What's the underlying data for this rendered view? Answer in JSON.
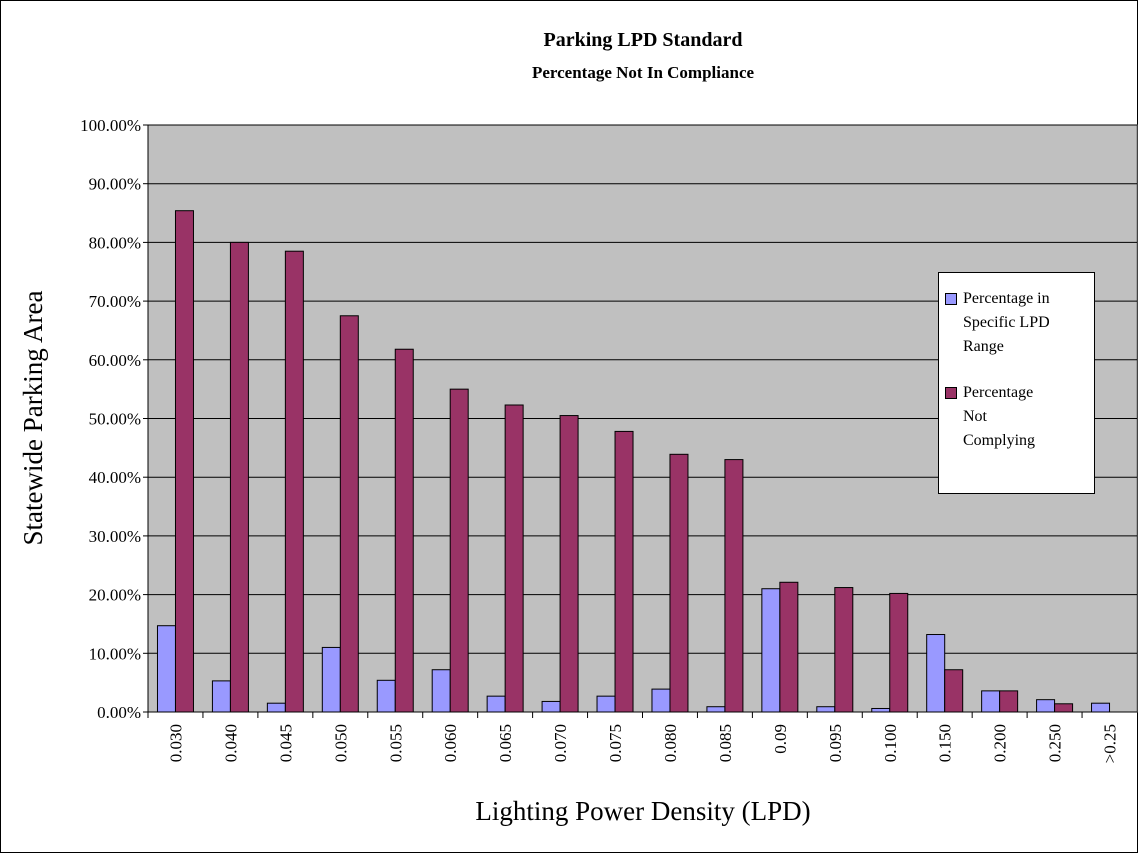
{
  "chart_data": {
    "type": "bar",
    "title": "Parking LPD Standard",
    "subtitle": "Percentage Not In Compliance",
    "x_label": "Lighting Power Density (LPD)",
    "y_label": "Statewide Parking Area",
    "categories": [
      "0.030",
      "0.040",
      "0.045",
      "0.050",
      "0.055",
      "0.060",
      "0.065",
      "0.070",
      "0.075",
      "0.080",
      "0.085",
      "0.09",
      "0.095",
      "0.100",
      "0.150",
      "0.200",
      "0.250",
      ">0.25"
    ],
    "series": [
      {
        "name": "Percentage in Specific LPD Range",
        "color": "#9999ff",
        "values": [
          14.7,
          5.3,
          1.5,
          11.0,
          5.4,
          7.2,
          2.7,
          1.8,
          2.7,
          3.9,
          0.9,
          21.0,
          0.9,
          0.6,
          13.2,
          3.6,
          2.1,
          1.5
        ]
      },
      {
        "name": "Percentage Not Complying",
        "color": "#993366",
        "values": [
          85.4,
          80.0,
          78.5,
          67.5,
          61.8,
          55.0,
          52.3,
          50.5,
          47.8,
          43.9,
          43.0,
          22.1,
          21.2,
          20.2,
          7.2,
          3.6,
          1.4,
          null
        ]
      }
    ],
    "ylim": [
      0,
      100
    ],
    "yticks": [
      {
        "value": 0,
        "label": "0.00%"
      },
      {
        "value": 10,
        "label": "10.00%"
      },
      {
        "value": 20,
        "label": "20.00%"
      },
      {
        "value": 30,
        "label": "30.00%"
      },
      {
        "value": 40,
        "label": "40.00%"
      },
      {
        "value": 50,
        "label": "50.00%"
      },
      {
        "value": 60,
        "label": "60.00%"
      },
      {
        "value": 70,
        "label": "70.00%"
      },
      {
        "value": 80,
        "label": "80.00%"
      },
      {
        "value": 90,
        "label": "90.00%"
      },
      {
        "value": 100,
        "label": "100.00%"
      }
    ],
    "grid": true,
    "plot_background": "#c0c0c0",
    "legend": "right"
  }
}
